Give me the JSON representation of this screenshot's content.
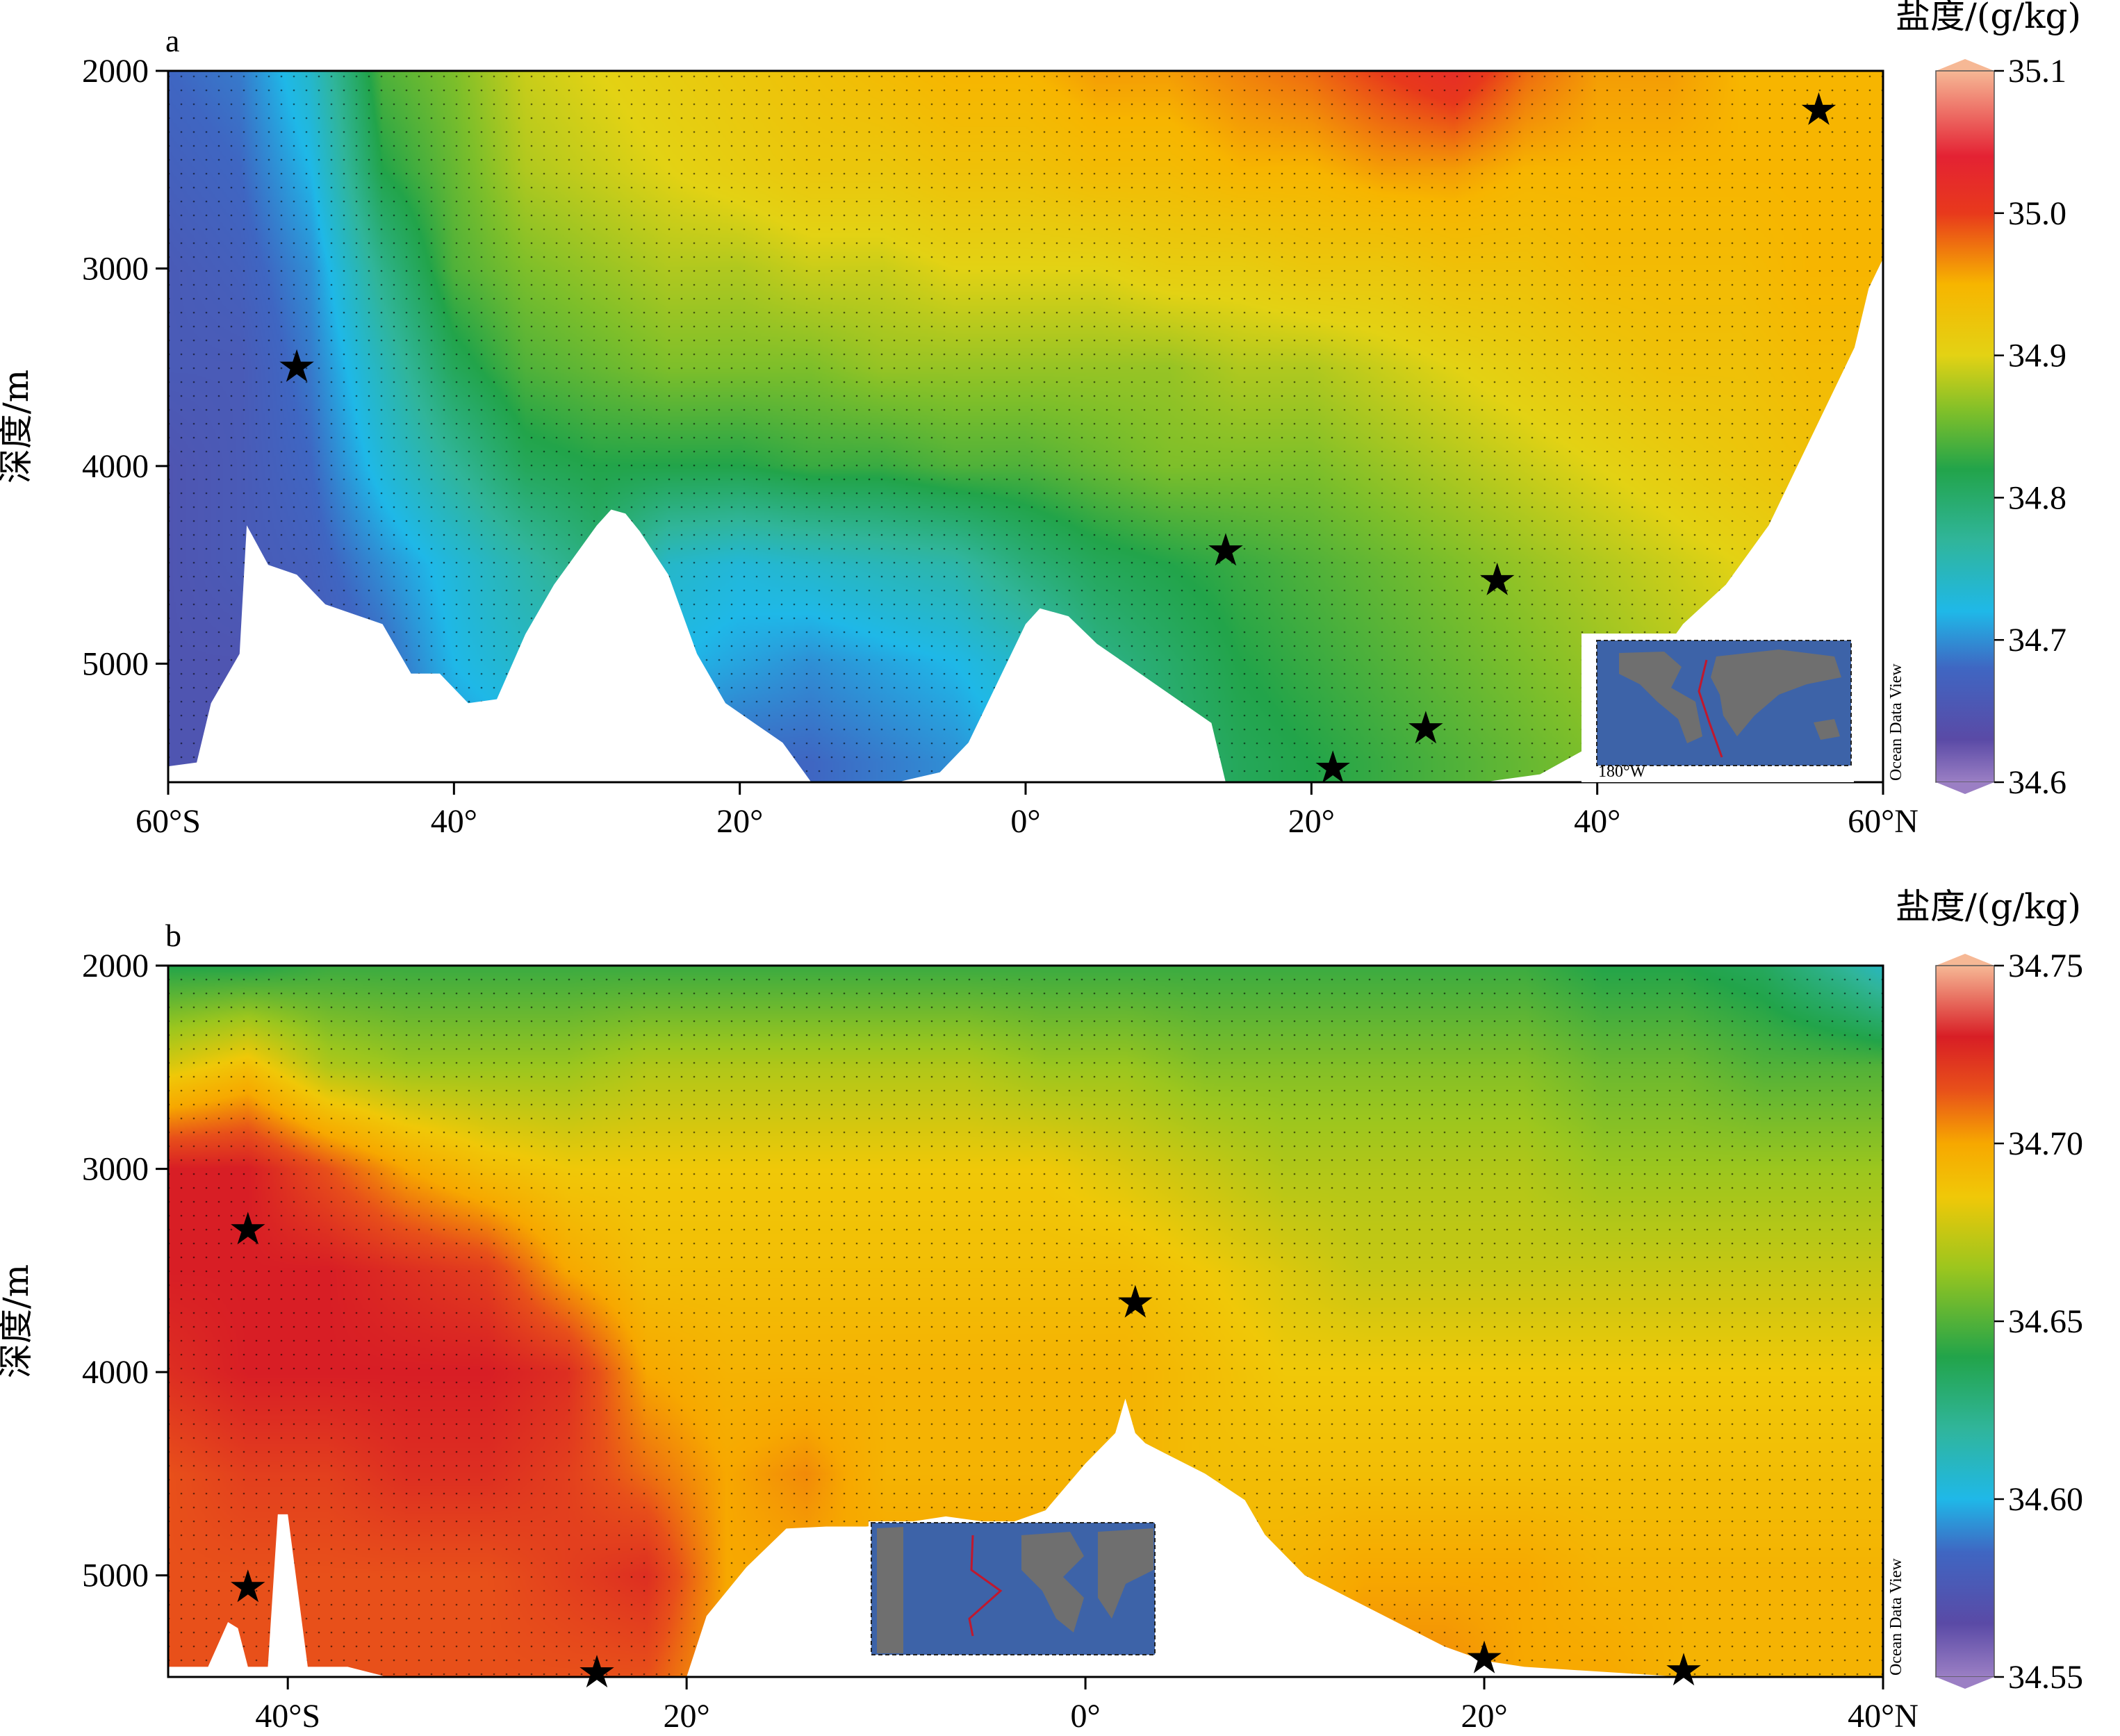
{
  "chart_data": [
    {
      "type": "heatmap",
      "panel_label": "a",
      "colorbar_title": "盐度/(g/kg)",
      "ylabel": "深度/m",
      "watermark": "Ocean Data View",
      "x_range": [
        -60,
        60
      ],
      "y_range": [
        2000,
        5600
      ],
      "y_inverted": true,
      "xticks": [
        {
          "value": -60,
          "label": "60°S"
        },
        {
          "value": -40,
          "label": "40°"
        },
        {
          "value": -20,
          "label": "20°"
        },
        {
          "value": 0,
          "label": "0°"
        },
        {
          "value": 20,
          "label": "20°"
        },
        {
          "value": 40,
          "label": "40°"
        },
        {
          "value": 60,
          "label": "60°N"
        }
      ],
      "yticks": [
        {
          "value": 2000,
          "label": "2000"
        },
        {
          "value": 3000,
          "label": "3000"
        },
        {
          "value": 4000,
          "label": "4000"
        },
        {
          "value": 5000,
          "label": "5000"
        }
      ],
      "colorbar_range": [
        34.6,
        35.1
      ],
      "colorbar_ticks": [
        {
          "value": 35.1,
          "label": "35.1"
        },
        {
          "value": 35.0,
          "label": "35.0"
        },
        {
          "value": 34.9,
          "label": "34.9"
        },
        {
          "value": 34.8,
          "label": "34.8"
        },
        {
          "value": 34.7,
          "label": "34.7"
        },
        {
          "value": 34.6,
          "label": "34.6"
        }
      ],
      "colormap": [
        {
          "value": 34.6,
          "color": "#9b7fc4"
        },
        {
          "value": 34.63,
          "color": "#5a4aa6"
        },
        {
          "value": 34.68,
          "color": "#3f66c2"
        },
        {
          "value": 34.72,
          "color": "#1fb8e8"
        },
        {
          "value": 34.77,
          "color": "#30b59a"
        },
        {
          "value": 34.82,
          "color": "#22a44a"
        },
        {
          "value": 34.86,
          "color": "#7ebf2a"
        },
        {
          "value": 34.9,
          "color": "#e3d214"
        },
        {
          "value": 34.95,
          "color": "#f7b500"
        },
        {
          "value": 35.0,
          "color": "#e8391c"
        },
        {
          "value": 35.04,
          "color": "#e42233"
        },
        {
          "value": 35.1,
          "color": "#f6b895"
        }
      ],
      "salinity_field": {
        "lat": [
          -60,
          -55,
          -50,
          -45,
          -40,
          -35,
          -30,
          -25,
          -20,
          -15,
          -10,
          -5,
          0,
          5,
          10,
          15,
          20,
          25,
          30,
          35,
          40,
          45,
          50,
          55,
          60
        ],
        "depth": [
          2000,
          2500,
          3000,
          3500,
          4000,
          4500,
          5000,
          5500
        ],
        "values": [
          [
            34.68,
            34.69,
            34.74,
            34.84,
            34.86,
            34.89,
            34.9,
            34.91,
            34.92,
            34.93,
            34.94,
            34.95,
            34.95,
            34.96,
            34.96,
            34.97,
            34.98,
            35.0,
            35.02,
            34.98,
            34.96,
            34.96,
            34.95,
            34.95,
            34.95
          ],
          [
            34.67,
            34.68,
            34.72,
            34.82,
            34.85,
            34.88,
            34.89,
            34.9,
            34.91,
            34.92,
            34.92,
            34.93,
            34.93,
            34.94,
            34.94,
            34.95,
            34.95,
            34.96,
            34.96,
            34.95,
            34.95,
            34.95,
            34.95,
            34.95,
            34.95
          ],
          [
            34.66,
            34.67,
            34.7,
            34.78,
            34.84,
            34.86,
            34.87,
            34.88,
            34.88,
            34.89,
            34.89,
            34.9,
            34.9,
            34.9,
            34.91,
            34.91,
            34.92,
            34.92,
            34.93,
            34.93,
            34.94,
            34.94,
            34.94,
            34.95,
            34.95
          ],
          [
            34.66,
            34.66,
            34.69,
            34.75,
            34.81,
            34.84,
            34.85,
            34.86,
            34.86,
            34.86,
            34.87,
            34.87,
            34.87,
            34.87,
            34.87,
            34.88,
            34.88,
            34.89,
            34.9,
            34.91,
            34.92,
            34.93,
            34.93,
            34.94,
            34.94
          ],
          [
            34.65,
            34.66,
            34.68,
            34.73,
            34.77,
            34.81,
            34.82,
            34.82,
            34.82,
            34.83,
            34.83,
            34.84,
            34.84,
            34.85,
            34.86,
            34.86,
            34.86,
            34.87,
            34.88,
            34.89,
            34.9,
            34.91,
            34.92,
            34.93,
            34.94
          ],
          [
            34.65,
            34.66,
            34.67,
            34.7,
            34.73,
            34.76,
            34.79,
            34.74,
            34.73,
            34.74,
            34.75,
            34.76,
            34.79,
            34.81,
            34.82,
            34.83,
            34.84,
            34.85,
            34.86,
            34.87,
            34.88,
            34.89,
            34.9,
            34.91,
            34.92
          ],
          [
            34.65,
            34.65,
            34.66,
            34.68,
            34.72,
            34.74,
            34.74,
            34.72,
            34.71,
            34.7,
            34.71,
            34.72,
            34.74,
            34.78,
            34.8,
            34.82,
            34.83,
            34.84,
            34.85,
            34.86,
            34.87,
            34.88,
            34.89,
            34.9,
            34.91
          ],
          [
            34.65,
            34.65,
            34.66,
            34.67,
            34.7,
            34.71,
            34.7,
            34.69,
            34.68,
            34.68,
            34.69,
            34.7,
            34.72,
            34.76,
            34.79,
            34.81,
            34.82,
            34.83,
            34.84,
            34.85,
            34.86,
            34.87,
            34.88,
            34.89,
            34.9
          ]
        ]
      },
      "bottom_depth": {
        "lat": [
          -60,
          -58,
          -57,
          -55,
          -54.5,
          -53,
          -51,
          -49,
          -47,
          -45,
          -43,
          -41,
          -39,
          -37,
          -35,
          -33,
          -31,
          -30,
          -29,
          -28,
          -27,
          -25,
          -23,
          -21,
          -19,
          -17,
          -15,
          -12,
          -9,
          -6,
          -4,
          -2,
          0,
          1,
          3,
          5,
          7,
          9,
          11,
          13,
          14,
          16,
          18,
          20,
          22,
          25,
          28,
          32,
          36,
          40,
          43,
          46,
          49,
          52,
          54,
          56,
          58,
          59,
          60
        ],
        "depth": [
          5520,
          5500,
          5200,
          4950,
          4300,
          4500,
          4550,
          4700,
          4750,
          4800,
          5050,
          5050,
          5200,
          5180,
          4850,
          4600,
          4400,
          4300,
          4220,
          4240,
          4330,
          4550,
          4950,
          5200,
          5300,
          5400,
          5600,
          5600,
          5600,
          5550,
          5400,
          5100,
          4800,
          4720,
          4760,
          4900,
          5000,
          5100,
          5200,
          5300,
          5600,
          5600,
          5600,
          5600,
          5600,
          5600,
          5600,
          5600,
          5560,
          5400,
          5100,
          4800,
          4600,
          4300,
          4000,
          3700,
          3400,
          3100,
          2950
        ]
      },
      "station_markers": [
        {
          "lat": -51,
          "depth": 3500
        },
        {
          "lat": 14,
          "depth": 4430
        },
        {
          "lat": 33,
          "depth": 4580
        },
        {
          "lat": 28,
          "depth": 5330
        },
        {
          "lat": 21.5,
          "depth": 5530
        },
        {
          "lat": 55.5,
          "depth": 2200
        }
      ]
    },
    {
      "type": "heatmap",
      "panel_label": "b",
      "colorbar_title": "盐度/(g/kg)",
      "ylabel": "深度/m",
      "watermark": "Ocean Data View",
      "x_range": [
        -46,
        40
      ],
      "y_range": [
        2000,
        5500
      ],
      "y_inverted": true,
      "xticks": [
        {
          "value": -40,
          "label": "40°S"
        },
        {
          "value": -20,
          "label": "20°"
        },
        {
          "value": 0,
          "label": "0°"
        },
        {
          "value": 20,
          "label": "20°"
        },
        {
          "value": 40,
          "label": "40°N"
        }
      ],
      "yticks": [
        {
          "value": 2000,
          "label": "2000"
        },
        {
          "value": 3000,
          "label": "3000"
        },
        {
          "value": 4000,
          "label": "4000"
        },
        {
          "value": 5000,
          "label": "5000"
        }
      ],
      "colorbar_range": [
        34.55,
        34.75
      ],
      "colorbar_ticks": [
        {
          "value": 34.75,
          "label": "34.75"
        },
        {
          "value": 34.7,
          "label": "34.70"
        },
        {
          "value": 34.65,
          "label": "34.65"
        },
        {
          "value": 34.6,
          "label": "34.60"
        },
        {
          "value": 34.55,
          "label": "34.55"
        }
      ],
      "colormap": [
        {
          "value": 34.55,
          "color": "#9b7fc4"
        },
        {
          "value": 34.565,
          "color": "#5a4aa6"
        },
        {
          "value": 34.585,
          "color": "#3f66c2"
        },
        {
          "value": 34.6,
          "color": "#1fb8e8"
        },
        {
          "value": 34.62,
          "color": "#30b59a"
        },
        {
          "value": 34.64,
          "color": "#22a44a"
        },
        {
          "value": 34.665,
          "color": "#9cc61e"
        },
        {
          "value": 34.685,
          "color": "#f0c808"
        },
        {
          "value": 34.7,
          "color": "#f7a800"
        },
        {
          "value": 34.715,
          "color": "#e8501a"
        },
        {
          "value": 34.73,
          "color": "#d81e25"
        },
        {
          "value": 34.75,
          "color": "#f6b895"
        }
      ],
      "salinity_field": {
        "lat": [
          -46,
          -42,
          -38,
          -34,
          -30,
          -26,
          -22,
          -18,
          -14,
          -10,
          -6,
          -2,
          2,
          6,
          10,
          14,
          18,
          22,
          26,
          30,
          34,
          38,
          40
        ],
        "depth": [
          2000,
          2500,
          3000,
          3500,
          4000,
          4500,
          5000,
          5500
        ],
        "values": [
          [
            34.64,
            34.64,
            34.645,
            34.645,
            34.645,
            34.645,
            34.645,
            34.645,
            34.645,
            34.645,
            34.645,
            34.645,
            34.645,
            34.645,
            34.645,
            34.645,
            34.645,
            34.645,
            34.64,
            34.64,
            34.635,
            34.62,
            34.61
          ],
          [
            34.68,
            34.69,
            34.67,
            34.665,
            34.665,
            34.665,
            34.67,
            34.67,
            34.67,
            34.67,
            34.67,
            34.665,
            34.665,
            34.66,
            34.66,
            34.66,
            34.66,
            34.66,
            34.655,
            34.655,
            34.65,
            34.65,
            34.65
          ],
          [
            34.73,
            34.73,
            34.715,
            34.7,
            34.69,
            34.685,
            34.685,
            34.685,
            34.685,
            34.685,
            34.685,
            34.685,
            34.68,
            34.675,
            34.67,
            34.67,
            34.67,
            34.67,
            34.665,
            34.665,
            34.665,
            34.665,
            34.665
          ],
          [
            34.73,
            34.73,
            34.73,
            34.725,
            34.72,
            34.7,
            34.69,
            34.69,
            34.69,
            34.69,
            34.69,
            34.69,
            34.69,
            34.685,
            34.68,
            34.675,
            34.675,
            34.675,
            34.675,
            34.675,
            34.675,
            34.675,
            34.675
          ],
          [
            34.725,
            34.73,
            34.73,
            34.73,
            34.73,
            34.725,
            34.7,
            34.695,
            34.695,
            34.695,
            34.695,
            34.695,
            34.695,
            34.69,
            34.685,
            34.685,
            34.685,
            34.685,
            34.685,
            34.685,
            34.685,
            34.685,
            34.685
          ],
          [
            34.715,
            34.72,
            34.72,
            34.725,
            34.725,
            34.72,
            34.71,
            34.7,
            34.705,
            34.695,
            34.695,
            34.695,
            34.695,
            34.69,
            34.69,
            34.69,
            34.69,
            34.69,
            34.69,
            34.69,
            34.69,
            34.69,
            34.69
          ],
          [
            34.715,
            34.715,
            34.715,
            34.715,
            34.715,
            34.72,
            34.725,
            34.7,
            34.7,
            34.7,
            34.7,
            34.7,
            34.7,
            34.695,
            34.695,
            34.7,
            34.7,
            34.7,
            34.695,
            34.695,
            34.695,
            34.695,
            34.695
          ],
          [
            34.715,
            34.715,
            34.715,
            34.715,
            34.715,
            34.715,
            34.715,
            34.7,
            34.7,
            34.7,
            34.7,
            34.7,
            34.7,
            34.7,
            34.7,
            34.705,
            34.705,
            34.7,
            34.7,
            34.695,
            34.695,
            34.695,
            34.695
          ]
        ]
      },
      "bottom_depth": {
        "lat": [
          -46,
          -44,
          -43,
          -42.5,
          -42,
          -41,
          -40.5,
          -40,
          -39,
          -37,
          -35,
          -31,
          -27,
          -23,
          -21,
          -20,
          -19,
          -17,
          -15,
          -13,
          -11,
          -9,
          -7,
          -4,
          -2,
          0,
          1.5,
          2,
          2.5,
          3,
          4,
          6,
          8,
          9,
          10,
          11,
          12,
          13,
          14,
          16,
          18,
          20,
          22,
          30,
          40
        ],
        "depth": [
          5450,
          5450,
          5230,
          5260,
          5450,
          5450,
          4700,
          4700,
          5450,
          5450,
          5500,
          5500,
          5500,
          5500,
          5500,
          5500,
          5200,
          4960,
          4770,
          4760,
          4760,
          4740,
          4710,
          4750,
          4680,
          4450,
          4300,
          4130,
          4300,
          4350,
          4400,
          4500,
          4630,
          4800,
          4900,
          5000,
          5050,
          5100,
          5150,
          5250,
          5350,
          5420,
          5450,
          5500,
          5500
        ]
      },
      "station_markers": [
        {
          "lat": -42,
          "depth": 3300
        },
        {
          "lat": -42,
          "depth": 5060
        },
        {
          "lat": -24.5,
          "depth": 5480
        },
        {
          "lat": 2.5,
          "depth": 3660
        },
        {
          "lat": 20,
          "depth": 5410
        },
        {
          "lat": 30,
          "depth": 5470
        }
      ]
    }
  ]
}
